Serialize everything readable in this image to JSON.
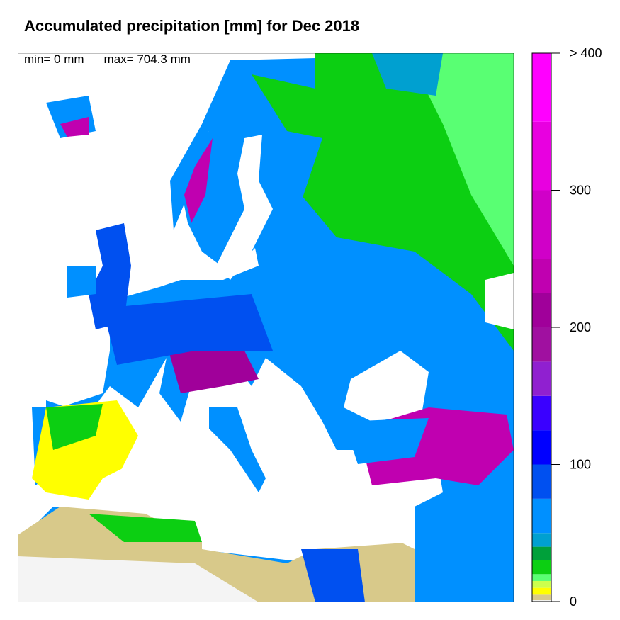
{
  "title": "Accumulated precipitation [mm] for Dec 2018",
  "stats": {
    "min_label": "min= 0 mm",
    "max_label": "max= 704.3 mm"
  },
  "colorbar": {
    "range": [
      0,
      400
    ],
    "breaks": [
      0,
      1,
      5,
      10,
      15,
      20,
      30,
      40,
      50,
      75,
      100,
      125,
      150,
      175,
      200,
      225,
      250,
      300,
      350,
      400
    ],
    "colors": [
      "#f4f4f4",
      "#d8c98a",
      "#ffff00",
      "#ccff4d",
      "#59ff73",
      "#0ccf12",
      "#00a03a",
      "#00a0d0",
      "#0090ff",
      "#0050f0",
      "#0000ff",
      "#3a00ff",
      "#9020d0",
      "#a010a0",
      "#a0009a",
      "#c000b0",
      "#d000c8",
      "#e800e0",
      "#ff00ff"
    ],
    "ticks": [
      {
        "value": 0,
        "label": "0"
      },
      {
        "value": 100,
        "label": "100"
      },
      {
        "value": 200,
        "label": "200"
      },
      {
        "value": 300,
        "label": "300"
      },
      {
        "value": 400,
        "label": "> 400"
      }
    ]
  },
  "map": {
    "region": "Europe",
    "sea_color": "#ffffff",
    "desert_color": "#f4f4f4"
  }
}
